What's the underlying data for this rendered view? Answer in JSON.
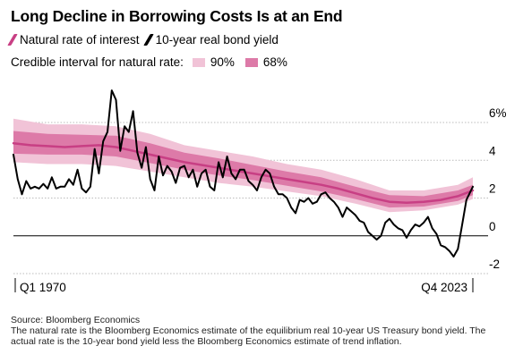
{
  "title": "Long Decline in Borrowing Costs Is at an End",
  "legend": {
    "natural_rate_label": "Natural rate of interest",
    "bond_yield_label": "10-year real bond yield",
    "interval_label": "Credible interval for natural rate:",
    "ci90_label": "90%",
    "ci68_label": "68%"
  },
  "footer": {
    "source": "Source: Bloomberg Economics",
    "note": "The natural rate is the Bloomberg Economics estimate of the equilibrium real 10-year US Treasury bond yield. The actual rate is the 10-year bond yield less the Bloomberg Economics estimate of trend inflation."
  },
  "colors": {
    "natural_rate": "#c83f84",
    "ci68": "#dd7aa8",
    "ci90": "#f1c3d7",
    "bond_yield": "#000000",
    "grid": "#bbbbbb",
    "zero_line": "#000000"
  },
  "chart_data": {
    "type": "line",
    "title": "Long Decline in Borrowing Costs Is at an End",
    "xlabel": "",
    "ylabel": "",
    "x_tick_labels": [
      "Q1 1970",
      "Q4 2023"
    ],
    "x_range": [
      1970.0,
      2023.75
    ],
    "ylim": [
      -2.5,
      7
    ],
    "y_ticks": [
      6,
      4,
      2,
      0,
      -2
    ],
    "y_tick_labels": [
      "6%",
      "4",
      "2",
      "0",
      "-2"
    ],
    "grid": "horizontal dotted",
    "legend_position": "top-left",
    "series": [
      {
        "name": "Natural rate of interest",
        "x": [
          1970,
          1972,
          1974,
          1976,
          1978,
          1980,
          1982,
          1984,
          1986,
          1988,
          1990,
          1992,
          1994,
          1996,
          1998,
          2000,
          2002,
          2004,
          2006,
          2008,
          2010,
          2012,
          2014,
          2016,
          2018,
          2020,
          2022,
          2023.75
        ],
        "values": [
          4.9,
          4.8,
          4.75,
          4.7,
          4.75,
          4.8,
          4.7,
          4.5,
          4.3,
          4.1,
          3.9,
          3.75,
          3.6,
          3.45,
          3.3,
          3.15,
          3.0,
          2.85,
          2.7,
          2.5,
          2.25,
          2.0,
          1.8,
          1.75,
          1.8,
          1.9,
          2.1,
          2.4
        ]
      },
      {
        "name": "10-year real bond yield",
        "x": [
          1970.0,
          1970.5,
          1971.0,
          1971.5,
          1972.0,
          1972.5,
          1973.0,
          1973.5,
          1974.0,
          1974.5,
          1975.0,
          1975.5,
          1976.0,
          1976.5,
          1977.0,
          1977.5,
          1978.0,
          1978.5,
          1979.0,
          1979.5,
          1980.0,
          1980.5,
          1981.0,
          1981.5,
          1982.0,
          1982.5,
          1983.0,
          1983.5,
          1984.0,
          1984.5,
          1985.0,
          1985.5,
          1986.0,
          1986.5,
          1987.0,
          1987.5,
          1988.0,
          1988.5,
          1989.0,
          1989.5,
          1990.0,
          1990.5,
          1991.0,
          1991.5,
          1992.0,
          1992.5,
          1993.0,
          1993.5,
          1994.0,
          1994.5,
          1995.0,
          1995.5,
          1996.0,
          1996.5,
          1997.0,
          1997.5,
          1998.0,
          1998.5,
          1999.0,
          1999.5,
          2000.0,
          2000.5,
          2001.0,
          2001.5,
          2002.0,
          2002.5,
          2003.0,
          2003.5,
          2004.0,
          2004.5,
          2005.0,
          2005.5,
          2006.0,
          2006.5,
          2007.0,
          2007.5,
          2008.0,
          2008.5,
          2009.0,
          2009.5,
          2010.0,
          2010.5,
          2011.0,
          2011.5,
          2012.0,
          2012.5,
          2013.0,
          2013.5,
          2014.0,
          2014.5,
          2015.0,
          2015.5,
          2016.0,
          2016.5,
          2017.0,
          2017.5,
          2018.0,
          2018.5,
          2019.0,
          2019.5,
          2020.0,
          2020.5,
          2021.0,
          2021.5,
          2022.0,
          2022.5,
          2023.0,
          2023.75
        ],
        "values": [
          4.3,
          3.0,
          2.2,
          2.9,
          2.5,
          2.6,
          2.5,
          2.75,
          2.5,
          3.1,
          2.5,
          2.6,
          2.6,
          3.0,
          2.7,
          3.5,
          2.5,
          2.3,
          2.6,
          4.6,
          3.3,
          5.0,
          5.5,
          7.7,
          7.2,
          4.5,
          5.8,
          5.5,
          6.6,
          4.4,
          3.6,
          4.7,
          3.0,
          2.4,
          4.2,
          3.2,
          3.7,
          3.4,
          2.8,
          3.6,
          3.7,
          3.1,
          3.5,
          2.6,
          3.3,
          3.5,
          2.6,
          2.4,
          3.9,
          3.1,
          4.2,
          3.3,
          3.0,
          3.5,
          3.5,
          2.9,
          2.7,
          2.4,
          3.1,
          3.5,
          3.3,
          2.6,
          2.2,
          2.2,
          2.0,
          1.5,
          1.2,
          1.9,
          1.8,
          2.0,
          1.7,
          1.8,
          2.2,
          2.3,
          2.0,
          1.8,
          1.5,
          1.0,
          1.5,
          1.3,
          1.1,
          0.8,
          0.7,
          0.2,
          0.0,
          -0.2,
          0.0,
          0.7,
          0.9,
          0.6,
          0.4,
          0.3,
          -0.1,
          0.3,
          0.6,
          0.5,
          0.7,
          1.0,
          0.4,
          0.1,
          -0.5,
          -0.6,
          -0.8,
          -1.1,
          -0.7,
          0.6,
          1.9,
          2.6
        ]
      }
    ],
    "bands": [
      {
        "name": "90%",
        "x": [
          1970,
          1974,
          1978,
          1982,
          1986,
          1990,
          1994,
          1998,
          2002,
          2006,
          2010,
          2014,
          2018,
          2022,
          2023.75
        ],
        "lower": [
          3.9,
          3.8,
          3.8,
          3.7,
          3.4,
          3.1,
          2.8,
          2.6,
          2.35,
          2.1,
          1.7,
          1.25,
          1.35,
          1.65,
          1.95
        ],
        "upper": [
          6.2,
          5.9,
          5.9,
          5.8,
          5.4,
          4.8,
          4.5,
          4.2,
          3.8,
          3.5,
          3.0,
          2.4,
          2.4,
          2.7,
          3.1
        ]
      },
      {
        "name": "68%",
        "x": [
          1970,
          1974,
          1978,
          1982,
          1986,
          1990,
          1994,
          1998,
          2002,
          2006,
          2010,
          2014,
          2018,
          2022,
          2023.75
        ],
        "lower": [
          4.35,
          4.3,
          4.3,
          4.2,
          3.85,
          3.5,
          3.2,
          2.95,
          2.65,
          2.35,
          1.95,
          1.5,
          1.55,
          1.85,
          2.15
        ],
        "upper": [
          5.55,
          5.4,
          5.35,
          5.3,
          4.9,
          4.4,
          4.1,
          3.75,
          3.4,
          3.1,
          2.6,
          2.15,
          2.1,
          2.4,
          2.7
        ]
      }
    ]
  }
}
